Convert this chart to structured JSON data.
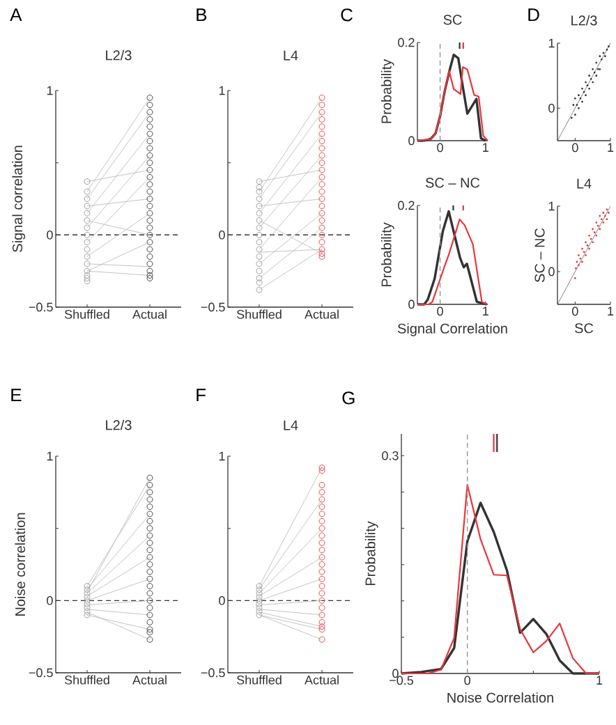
{
  "chart_data": [
    {
      "type": "scatter",
      "title": "L2/3",
      "ylabel": "Signal correlation",
      "annotations": [
        "A"
      ],
      "categories": [
        "Shuffled",
        "Actual"
      ],
      "ylim": [
        -0.5,
        1
      ],
      "yticks": [
        {
          "value": -0.5,
          "label": "−0.5"
        },
        0,
        {
          "value": 0.5,
          "label": null
        },
        1
      ],
      "ref_lines": [
        {
          "axis": "y",
          "value": 0,
          "color": "#333333",
          "line_style": "dashed"
        }
      ],
      "series": [
        {
          "type": "line",
          "color": "#bcbdc0",
          "values": [
            0.3,
            0.95
          ]
        },
        {
          "type": "line",
          "color": "#bcbdc0",
          "values": [
            0.25,
            0.85
          ]
        },
        {
          "type": "line",
          "color": "#bcbdc0",
          "values": [
            0.15,
            0.7
          ]
        },
        {
          "type": "line",
          "color": "#bcbdc0",
          "values": [
            0.05,
            0.55
          ]
        },
        {
          "type": "line",
          "color": "#bcbdc0",
          "values": [
            0.37,
            0.45
          ]
        },
        {
          "type": "line",
          "color": "#bcbdc0",
          "values": [
            -0.05,
            0.4
          ]
        },
        {
          "type": "line",
          "color": "#bcbdc0",
          "values": [
            0.2,
            0.25
          ]
        },
        {
          "type": "line",
          "color": "#bcbdc0",
          "values": [
            -0.15,
            0.15
          ]
        },
        {
          "type": "line",
          "color": "#bcbdc0",
          "values": [
            0.1,
            0
          ]
        },
        {
          "type": "line",
          "color": "#bcbdc0",
          "values": [
            -0.25,
            -0.05
          ]
        },
        {
          "type": "line",
          "color": "#bcbdc0",
          "values": [
            -0.25,
            -0.28
          ]
        },
        {
          "type": "line",
          "color": "#bcbdc0",
          "values": [
            -0.2,
            -0.22
          ]
        },
        {
          "type": "scatter",
          "marker": "circle",
          "color": "#939598",
          "x": [
            "Shuffled",
            "Shuffled",
            "Shuffled",
            "Shuffled",
            "Shuffled",
            "Shuffled",
            "Shuffled",
            "Shuffled",
            "Shuffled",
            "Shuffled",
            "Shuffled",
            "Shuffled",
            "Shuffled",
            "Shuffled",
            "Shuffled",
            "Shuffled"
          ],
          "values": [
            -0.32,
            -0.3,
            -0.28,
            -0.25,
            -0.2,
            -0.15,
            -0.1,
            -0.05,
            0,
            0.05,
            0.1,
            0.15,
            0.2,
            0.25,
            0.3,
            0.37
          ]
        },
        {
          "type": "scatter",
          "marker": "circle",
          "color": "#333333",
          "x": [
            "Actual",
            "Actual",
            "Actual",
            "Actual",
            "Actual",
            "Actual",
            "Actual",
            "Actual",
            "Actual",
            "Actual",
            "Actual",
            "Actual",
            "Actual",
            "Actual",
            "Actual",
            "Actual",
            "Actual",
            "Actual",
            "Actual",
            "Actual",
            "Actual",
            "Actual",
            "Actual",
            "Actual",
            "Actual",
            "Actual",
            "Actual"
          ],
          "values": [
            -0.3,
            -0.28,
            -0.25,
            -0.2,
            -0.15,
            -0.1,
            -0.05,
            0,
            0.05,
            0.1,
            0.15,
            0.2,
            0.25,
            0.3,
            0.35,
            0.4,
            0.45,
            0.5,
            0.55,
            0.6,
            0.65,
            0.7,
            0.75,
            0.8,
            0.85,
            0.9,
            0.95
          ]
        }
      ]
    },
    {
      "type": "scatter",
      "title": "L4",
      "annotations": [
        "B"
      ],
      "categories": [
        "Shuffled",
        "Actual"
      ],
      "ylim": [
        -0.5,
        1
      ],
      "yticks": [
        {
          "value": -0.5,
          "label": "−0.5"
        },
        0,
        {
          "value": 0.5,
          "label": null
        },
        1
      ],
      "ref_lines": [
        {
          "axis": "y",
          "value": 0,
          "color": "#333333",
          "line_style": "dashed"
        }
      ],
      "series": [
        {
          "type": "line",
          "color": "#bcbdc0",
          "values": [
            0.3,
            0.95
          ]
        },
        {
          "type": "line",
          "color": "#bcbdc0",
          "values": [
            0.25,
            0.85
          ]
        },
        {
          "type": "line",
          "color": "#bcbdc0",
          "values": [
            0.15,
            0.7
          ]
        },
        {
          "type": "line",
          "color": "#bcbdc0",
          "values": [
            0.05,
            0.55
          ]
        },
        {
          "type": "line",
          "color": "#bcbdc0",
          "values": [
            0.37,
            0.45
          ]
        },
        {
          "type": "line",
          "color": "#bcbdc0",
          "values": [
            -0.1,
            0.4
          ]
        },
        {
          "type": "line",
          "color": "#bcbdc0",
          "values": [
            0.2,
            0.25
          ]
        },
        {
          "type": "line",
          "color": "#bcbdc0",
          "values": [
            -0.2,
            0.15
          ]
        },
        {
          "type": "line",
          "color": "#bcbdc0",
          "values": [
            -0.3,
            0.05
          ]
        },
        {
          "type": "line",
          "color": "#bcbdc0",
          "values": [
            -0.38,
            -0.1
          ]
        },
        {
          "type": "line",
          "color": "#bcbdc0",
          "values": [
            0.1,
            -0.13
          ]
        },
        {
          "type": "line",
          "color": "#bcbdc0",
          "values": [
            -0.12,
            -0.1
          ]
        },
        {
          "type": "scatter",
          "marker": "circle",
          "color": "#939598",
          "x": [
            "Shuffled",
            "Shuffled",
            "Shuffled",
            "Shuffled",
            "Shuffled",
            "Shuffled",
            "Shuffled",
            "Shuffled",
            "Shuffled",
            "Shuffled",
            "Shuffled",
            "Shuffled",
            "Shuffled",
            "Shuffled",
            "Shuffled",
            "Shuffled",
            "Shuffled"
          ],
          "values": [
            -0.38,
            -0.33,
            -0.3,
            -0.25,
            -0.2,
            -0.15,
            -0.1,
            -0.05,
            0,
            0.05,
            0.1,
            0.15,
            0.2,
            0.25,
            0.3,
            0.33,
            0.37
          ]
        },
        {
          "type": "scatter",
          "marker": "circle",
          "color": "#e8353a",
          "x": [
            "Actual",
            "Actual",
            "Actual",
            "Actual",
            "Actual",
            "Actual",
            "Actual",
            "Actual",
            "Actual",
            "Actual",
            "Actual",
            "Actual",
            "Actual",
            "Actual",
            "Actual",
            "Actual",
            "Actual",
            "Actual",
            "Actual",
            "Actual",
            "Actual",
            "Actual",
            "Actual",
            "Actual"
          ],
          "values": [
            -0.15,
            -0.13,
            -0.1,
            -0.05,
            0,
            0.05,
            0.1,
            0.15,
            0.2,
            0.25,
            0.3,
            0.35,
            0.4,
            0.45,
            0.5,
            0.55,
            0.6,
            0.65,
            0.7,
            0.75,
            0.8,
            0.85,
            0.9,
            0.95
          ]
        }
      ]
    },
    {
      "type": "line",
      "title": "SC",
      "ylabel": "Probability",
      "annotations": [
        "C"
      ],
      "xlim": [
        -0.5,
        1.05
      ],
      "ylim": [
        0,
        0.2
      ],
      "xticks": [
        0,
        1
      ],
      "yticks": [
        0,
        0.2
      ],
      "ref_lines": [
        {
          "axis": "x",
          "value": 0,
          "color": "#939598",
          "line_style": "dashed"
        }
      ],
      "series": [
        {
          "color": "#333333",
          "x": [
            -0.5,
            -0.4,
            -0.3,
            -0.2,
            -0.1,
            0,
            0.1,
            0.2,
            0.3,
            0.4,
            0.5,
            0.6,
            0.7,
            0.8,
            0.9,
            1
          ],
          "values": [
            0,
            0,
            0.001,
            0.004,
            0.015,
            0.05,
            0.1,
            0.14,
            0.175,
            0.168,
            0.11,
            0.055,
            0.07,
            0.085,
            0.005,
            0
          ]
        },
        {
          "color": "#e8353a",
          "x": [
            -0.5,
            -0.2,
            -0.1,
            0,
            0.1,
            0.2,
            0.3,
            0.45,
            0.5,
            0.6,
            0.75,
            0.85,
            0.95,
            1.05
          ],
          "values": [
            0,
            0.003,
            0.015,
            0.05,
            0.1,
            0.142,
            0.105,
            0.095,
            0.15,
            0.145,
            0.093,
            0.09,
            0.01,
            0
          ]
        },
        {
          "color": "#333333",
          "x": [
            0.43,
            0.43
          ],
          "values": [
            0.187,
            0.2
          ]
        },
        {
          "color": "#e8353a",
          "x": [
            0.51,
            0.51
          ],
          "values": [
            0.187,
            0.2
          ]
        }
      ]
    },
    {
      "type": "line",
      "title": "SC – NC",
      "ylabel": "Probability",
      "xlabel": "Signal Correlation",
      "xlim": [
        -0.5,
        1.05
      ],
      "ylim": [
        0,
        0.2
      ],
      "xticks": [
        0,
        1
      ],
      "yticks": [
        0,
        0.2
      ],
      "ref_lines": [
        {
          "axis": "x",
          "value": 0,
          "color": "#939598",
          "line_style": "dashed"
        }
      ],
      "series": [
        {
          "color": "#333333",
          "x": [
            -0.5,
            -0.35,
            -0.27,
            -0.12,
            0.06,
            0.19,
            0.44,
            0.52,
            0.59,
            0.81,
            1.03
          ],
          "values": [
            0,
            0,
            0.01,
            0.052,
            0.148,
            0.188,
            0.094,
            0.075,
            0.082,
            0.005,
            0
          ]
        },
        {
          "color": "#e8353a",
          "x": [
            -0.5,
            -0.25,
            -0.17,
            0.09,
            0.19,
            0.43,
            0.54,
            0.72,
            0.92,
            1.03
          ],
          "values": [
            0,
            0,
            0.005,
            0.075,
            0.1,
            0.172,
            0.16,
            0.122,
            0.005,
            0
          ]
        },
        {
          "color": "#333333",
          "x": [
            0.29,
            0.29
          ],
          "values": [
            0.19,
            0.2
          ]
        },
        {
          "color": "#e8353a",
          "x": [
            0.51,
            0.51
          ],
          "values": [
            0.19,
            0.2
          ]
        }
      ]
    },
    {
      "type": "scatter",
      "title": "L2/3",
      "annotations": [
        "D"
      ],
      "xlim": [
        -0.5,
        1
      ],
      "ylim": [
        -0.5,
        1
      ],
      "xticks": [
        0,
        1
      ],
      "yticks": [
        0,
        1
      ],
      "series": [
        {
          "type": "line",
          "color": "#333333",
          "x": [
            -0.5,
            1
          ],
          "values": [
            -0.5,
            1
          ]
        },
        {
          "marker": "circle",
          "color": "#333333",
          "x": [
            -0.1,
            -0.05,
            0,
            0,
            0.05,
            0.1,
            0.1,
            0.15,
            0.2,
            0.2,
            0.25,
            0.3,
            0.3,
            0.35,
            0.4,
            0.4,
            0.45,
            0.5,
            0.5,
            0.55,
            0.6,
            0.6,
            0.65,
            0.7,
            0.7,
            0.75,
            0.8,
            0.85,
            0.9,
            0.95
          ],
          "values": [
            -0.15,
            0.05,
            -0.1,
            0.15,
            0.05,
            0.2,
            0,
            0.15,
            0.3,
            0.1,
            0.25,
            0.4,
            0.2,
            0.35,
            0.5,
            0.3,
            0.45,
            0.6,
            0.4,
            0.55,
            0.7,
            0.5,
            0.6,
            0.8,
            0.6,
            0.75,
            0.85,
            0.8,
            0.9,
            0.95
          ]
        }
      ]
    },
    {
      "type": "scatter",
      "title": "L4",
      "ylabel": "SC – NC",
      "xlabel": "SC",
      "xlim": [
        -0.5,
        1
      ],
      "ylim": [
        -0.5,
        1
      ],
      "xticks": [
        0,
        1
      ],
      "yticks": [
        0,
        1
      ],
      "series": [
        {
          "type": "line",
          "color": "#333333",
          "x": [
            -0.5,
            1
          ],
          "values": [
            -0.5,
            1
          ]
        },
        {
          "marker": "circle",
          "color": "#e8353a",
          "x": [
            0,
            0.02,
            0.05,
            0.1,
            0.1,
            0.15,
            0.2,
            0.2,
            0.25,
            0.3,
            0.3,
            0.35,
            0.4,
            0.4,
            0.45,
            0.5,
            0.5,
            0.55,
            0.6,
            0.6,
            0.65,
            0.7,
            0.7,
            0.75,
            0.8,
            0.8,
            0.85,
            0.9,
            0.9,
            0.95
          ],
          "values": [
            -0.1,
            0.05,
            0.15,
            0.1,
            0.25,
            0.2,
            0.35,
            0.15,
            0.3,
            0.45,
            0.25,
            0.4,
            0.55,
            0.35,
            0.5,
            0.65,
            0.45,
            0.6,
            0.75,
            0.55,
            0.7,
            0.85,
            0.65,
            0.8,
            0.9,
            0.75,
            0.85,
            0.95,
            0.8,
            0.9
          ]
        }
      ]
    },
    {
      "type": "scatter",
      "title": "L2/3",
      "ylabel": "Noise correlation",
      "annotations": [
        "E"
      ],
      "categories": [
        "Shuffled",
        "Actual"
      ],
      "ylim": [
        -0.5,
        1
      ],
      "yticks": [
        {
          "value": -0.5,
          "label": "−0.5"
        },
        0,
        {
          "value": 0.5,
          "label": null
        },
        1
      ],
      "ref_lines": [
        {
          "axis": "y",
          "value": 0,
          "color": "#333333",
          "line_style": "dashed"
        }
      ],
      "series": [
        {
          "type": "line",
          "color": "#bcbdc0",
          "values": [
            0.1,
            0.8
          ]
        },
        {
          "type": "line",
          "color": "#bcbdc0",
          "values": [
            0.08,
            0.6
          ]
        },
        {
          "type": "line",
          "color": "#bcbdc0",
          "values": [
            0.05,
            0.45
          ]
        },
        {
          "type": "line",
          "color": "#bcbdc0",
          "values": [
            0.03,
            0.3
          ]
        },
        {
          "type": "line",
          "color": "#bcbdc0",
          "values": [
            0,
            0.15
          ]
        },
        {
          "type": "line",
          "color": "#bcbdc0",
          "values": [
            -0.03,
            0
          ]
        },
        {
          "type": "line",
          "color": "#bcbdc0",
          "values": [
            -0.06,
            -0.1
          ]
        },
        {
          "type": "line",
          "color": "#bcbdc0",
          "values": [
            -0.1,
            -0.2
          ]
        },
        {
          "type": "line",
          "color": "#bcbdc0",
          "values": [
            -0.08,
            -0.27
          ]
        },
        {
          "type": "line",
          "color": "#bcbdc0",
          "values": [
            0.06,
            0.85
          ]
        },
        {
          "type": "scatter",
          "marker": "circle",
          "color": "#939598",
          "x": [
            "Shuffled",
            "Shuffled",
            "Shuffled",
            "Shuffled",
            "Shuffled",
            "Shuffled",
            "Shuffled",
            "Shuffled",
            "Shuffled"
          ],
          "values": [
            -0.1,
            -0.075,
            -0.05,
            -0.025,
            0,
            0.025,
            0.05,
            0.075,
            0.1
          ]
        },
        {
          "type": "scatter",
          "marker": "circle",
          "color": "#333333",
          "x": [
            "Actual",
            "Actual",
            "Actual",
            "Actual",
            "Actual",
            "Actual",
            "Actual",
            "Actual",
            "Actual",
            "Actual",
            "Actual",
            "Actual",
            "Actual",
            "Actual",
            "Actual",
            "Actual",
            "Actual",
            "Actual",
            "Actual",
            "Actual",
            "Actual",
            "Actual",
            "Actual",
            "Actual"
          ],
          "values": [
            -0.27,
            -0.22,
            -0.2,
            -0.15,
            -0.1,
            -0.05,
            0,
            0.05,
            0.1,
            0.15,
            0.2,
            0.25,
            0.3,
            0.35,
            0.4,
            0.45,
            0.5,
            0.55,
            0.6,
            0.65,
            0.7,
            0.75,
            0.8,
            0.85
          ]
        }
      ]
    },
    {
      "type": "scatter",
      "title": "L4",
      "annotations": [
        "F"
      ],
      "categories": [
        "Shuffled",
        "Actual"
      ],
      "ylim": [
        -0.5,
        1
      ],
      "yticks": [
        {
          "value": -0.5,
          "label": "−0.5"
        },
        0,
        {
          "value": 0.5,
          "label": null
        },
        1
      ],
      "ref_lines": [
        {
          "axis": "y",
          "value": 0,
          "color": "#333333",
          "line_style": "dashed"
        }
      ],
      "series": [
        {
          "type": "line",
          "color": "#bcbdc0",
          "values": [
            0.1,
            0.92
          ]
        },
        {
          "type": "line",
          "color": "#bcbdc0",
          "values": [
            0.08,
            0.7
          ]
        },
        {
          "type": "line",
          "color": "#bcbdc0",
          "values": [
            0.05,
            0.5
          ]
        },
        {
          "type": "line",
          "color": "#bcbdc0",
          "values": [
            0.03,
            0.3
          ]
        },
        {
          "type": "line",
          "color": "#bcbdc0",
          "values": [
            0,
            0.15
          ]
        },
        {
          "type": "line",
          "color": "#bcbdc0",
          "values": [
            -0.03,
            0
          ]
        },
        {
          "type": "line",
          "color": "#bcbdc0",
          "values": [
            -0.06,
            -0.1
          ]
        },
        {
          "type": "line",
          "color": "#bcbdc0",
          "values": [
            -0.1,
            -0.27
          ]
        },
        {
          "type": "line",
          "color": "#bcbdc0",
          "values": [
            -0.08,
            -0.18
          ]
        },
        {
          "type": "line",
          "color": "#bcbdc0",
          "values": [
            -0.1,
            -0.2
          ]
        },
        {
          "type": "scatter",
          "marker": "circle",
          "color": "#939598",
          "x": [
            "Shuffled",
            "Shuffled",
            "Shuffled",
            "Shuffled",
            "Shuffled",
            "Shuffled",
            "Shuffled",
            "Shuffled",
            "Shuffled"
          ],
          "values": [
            -0.1,
            -0.075,
            -0.05,
            -0.025,
            0,
            0.025,
            0.05,
            0.075,
            0.1
          ]
        },
        {
          "type": "scatter",
          "marker": "circle",
          "color": "#e8353a",
          "x": [
            "Actual",
            "Actual",
            "Actual",
            "Actual",
            "Actual",
            "Actual",
            "Actual",
            "Actual",
            "Actual",
            "Actual",
            "Actual",
            "Actual",
            "Actual",
            "Actual",
            "Actual",
            "Actual",
            "Actual",
            "Actual",
            "Actual",
            "Actual",
            "Actual",
            "Actual",
            "Actual",
            "Actual",
            "Actual"
          ],
          "values": [
            -0.27,
            -0.2,
            -0.18,
            -0.15,
            -0.1,
            -0.05,
            0,
            0.05,
            0.1,
            0.15,
            0.2,
            0.25,
            0.3,
            0.35,
            0.4,
            0.45,
            0.5,
            0.55,
            0.6,
            0.65,
            0.7,
            0.75,
            0.8,
            0.9,
            0.92
          ]
        }
      ]
    },
    {
      "type": "line",
      "xlabel": "Noise Correlation",
      "ylabel": "Probability",
      "annotations": [
        "G"
      ],
      "xlim": [
        -0.5,
        1
      ],
      "ylim": [
        0,
        0.33
      ],
      "xticks": [
        {
          "value": -0.5,
          "label": "−0.5"
        },
        0,
        {
          "value": 0.5,
          "label": null
        },
        1
      ],
      "yticks": [
        0,
        {
          "value": 0.05,
          "label": null
        },
        {
          "value": 0.1,
          "label": null
        },
        {
          "value": 0.15,
          "label": null
        },
        {
          "value": 0.2,
          "label": null
        },
        {
          "value": 0.25,
          "label": null
        },
        0.3
      ],
      "ref_lines": [
        {
          "axis": "x",
          "value": 0,
          "color": "#939598",
          "line_style": "dashed"
        }
      ],
      "series": [
        {
          "color": "#333333",
          "x": [
            -0.5,
            -0.35,
            -0.2,
            -0.1,
            0,
            0.1,
            0.2,
            0.3,
            0.4,
            0.5,
            0.6,
            0.7,
            0.8,
            0.9,
            1
          ],
          "values": [
            0,
            0.002,
            0.006,
            0.035,
            0.182,
            0.235,
            0.195,
            0.142,
            0.056,
            0.075,
            0.054,
            0.018,
            0,
            0,
            0
          ]
        },
        {
          "color": "#e8353a",
          "x": [
            -0.5,
            -0.3,
            -0.2,
            -0.1,
            0,
            0.1,
            0.2,
            0.3,
            0.4,
            0.5,
            0.6,
            0.7,
            0.8,
            0.9,
            1
          ],
          "values": [
            0,
            0,
            0.005,
            0.049,
            0.26,
            0.185,
            0.136,
            0.135,
            0.061,
            0.029,
            0.045,
            0.069,
            0.021,
            0,
            0
          ]
        },
        {
          "color": "#e8353a",
          "x": [
            0.2,
            0.2
          ],
          "values": [
            0.305,
            0.33
          ]
        },
        {
          "color": "#333333",
          "x": [
            0.225,
            0.225
          ],
          "values": [
            0.305,
            0.33
          ]
        }
      ]
    }
  ]
}
